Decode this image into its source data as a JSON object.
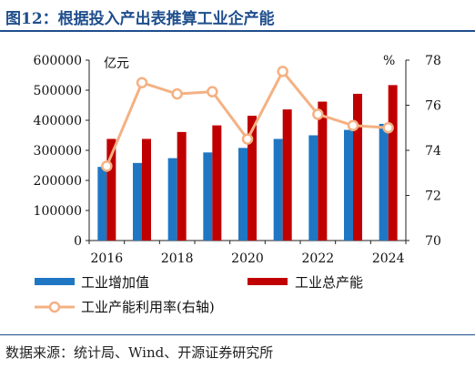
{
  "title": "图12：根据投入产出表推算工业企产能",
  "source": "数据来源：统计局、Wind、开源证券研究所",
  "chart_data": {
    "type": "bar",
    "categories": [
      "2016",
      "2017",
      "2018",
      "2019",
      "2020",
      "2021",
      "2022",
      "2023",
      "2024"
    ],
    "x_tick_labels": [
      "2016",
      "2018",
      "2020",
      "2022",
      "2024"
    ],
    "left_axis": {
      "unit": "亿元",
      "ylim": [
        0,
        600000
      ],
      "ticks": [
        "0",
        "100000",
        "200000",
        "300000",
        "400000",
        "500000",
        "600000"
      ]
    },
    "right_axis": {
      "unit": "%",
      "ylim": [
        70,
        78
      ],
      "ticks": [
        "70",
        "72",
        "74",
        "76",
        "78"
      ]
    },
    "series": [
      {
        "name": "工业增加值",
        "type": "bar",
        "axis": "left",
        "color": "#1f77c4",
        "values": [
          245000,
          258000,
          274000,
          293000,
          308000,
          338000,
          350000,
          368000,
          388000
        ]
      },
      {
        "name": "工业总产能",
        "type": "bar",
        "axis": "left",
        "color": "#c00000",
        "values": [
          338000,
          338000,
          361000,
          383000,
          415000,
          436000,
          462000,
          488000,
          517000
        ]
      },
      {
        "name": "工业产能利用率(右轴)",
        "type": "line",
        "axis": "right",
        "color": "#f4b183",
        "values": [
          73.3,
          77.0,
          76.5,
          76.6,
          74.5,
          77.5,
          75.6,
          75.1,
          75.0
        ]
      }
    ],
    "legend": {
      "placement": "bottom"
    },
    "grid": false
  }
}
